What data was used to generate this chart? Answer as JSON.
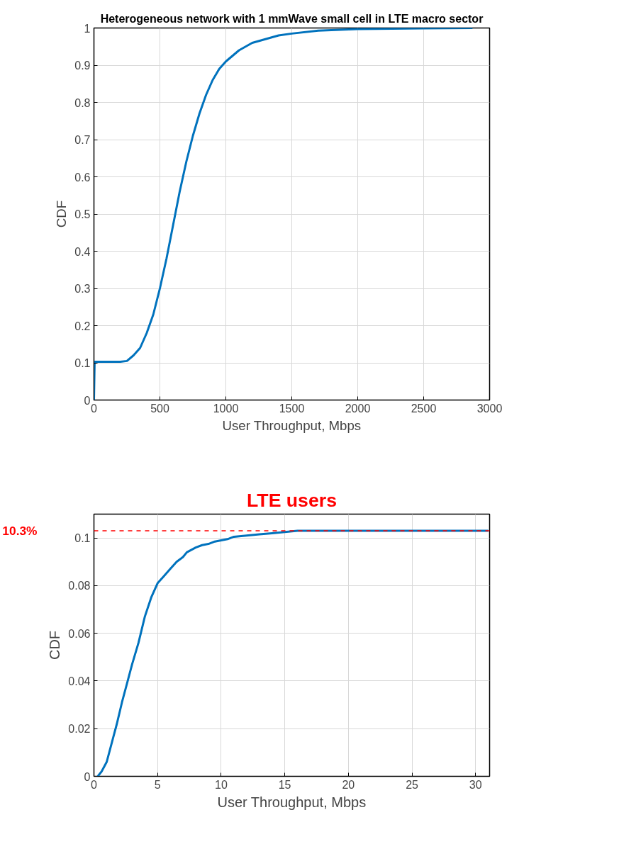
{
  "chart_data": [
    {
      "type": "line",
      "title": "Heterogeneous network with 1 mmWave small cell in LTE macro sector",
      "xlabel": "User Throughput, Mbps",
      "ylabel": "CDF",
      "x": [
        0,
        5,
        30,
        100,
        200,
        250,
        300,
        350,
        400,
        450,
        500,
        550,
        600,
        650,
        700,
        750,
        800,
        850,
        900,
        950,
        1000,
        1100,
        1200,
        1300,
        1400,
        1500,
        1700,
        2000,
        2500,
        2870
      ],
      "series": [
        {
          "color": "#0072bd",
          "values": [
            0,
            0.103,
            0.103,
            0.103,
            0.103,
            0.105,
            0.12,
            0.14,
            0.18,
            0.23,
            0.3,
            0.38,
            0.47,
            0.56,
            0.64,
            0.71,
            0.77,
            0.82,
            0.86,
            0.89,
            0.91,
            0.94,
            0.96,
            0.97,
            0.98,
            0.985,
            0.993,
            0.997,
            0.999,
            1.0
          ]
        }
      ],
      "xlim": [
        0,
        3000
      ],
      "ylim": [
        0,
        1
      ],
      "xticks": [
        0,
        500,
        1000,
        1500,
        2000,
        2500,
        3000
      ],
      "yticks": [
        0,
        0.1,
        0.2,
        0.3,
        0.4,
        0.5,
        0.6,
        0.7,
        0.8,
        0.9,
        1
      ],
      "grid": true,
      "marker": "none",
      "line_style": "solid"
    },
    {
      "type": "line",
      "title": "LTE users",
      "xlabel": "User Throughput, Mbps",
      "ylabel": "CDF",
      "x": [
        0.3,
        0.6,
        1,
        1.2,
        1.5,
        1.8,
        2.2,
        2.6,
        3,
        3.5,
        4,
        4.5,
        5,
        5.5,
        6,
        6.5,
        7,
        7.3,
        8,
        8.5,
        9,
        9.5,
        10,
        10.5,
        11,
        12,
        13,
        14,
        15,
        16,
        20,
        31
      ],
      "series": [
        {
          "color": "#0072bd",
          "values": [
            0,
            0.002,
            0.006,
            0.01,
            0.016,
            0.022,
            0.031,
            0.039,
            0.047,
            0.056,
            0.067,
            0.075,
            0.081,
            0.084,
            0.087,
            0.09,
            0.092,
            0.094,
            0.096,
            0.097,
            0.0975,
            0.0985,
            0.099,
            0.0995,
            0.1005,
            0.101,
            0.1015,
            0.102,
            0.1025,
            0.103,
            0.103,
            0.103
          ]
        }
      ],
      "xlim": [
        0,
        31.1
      ],
      "ylim": [
        0,
        0.11
      ],
      "xticks": [
        0,
        5,
        10,
        15,
        20,
        25,
        30
      ],
      "yticks": [
        0,
        0.02,
        0.04,
        0.06,
        0.08,
        0.1
      ],
      "grid": true,
      "marker": "none",
      "line_style": "solid",
      "ref_lines": [
        {
          "axis": "y",
          "value": 0.103,
          "label": "10.3%",
          "color": "#ff0000",
          "line_style": "dashed"
        }
      ]
    }
  ]
}
